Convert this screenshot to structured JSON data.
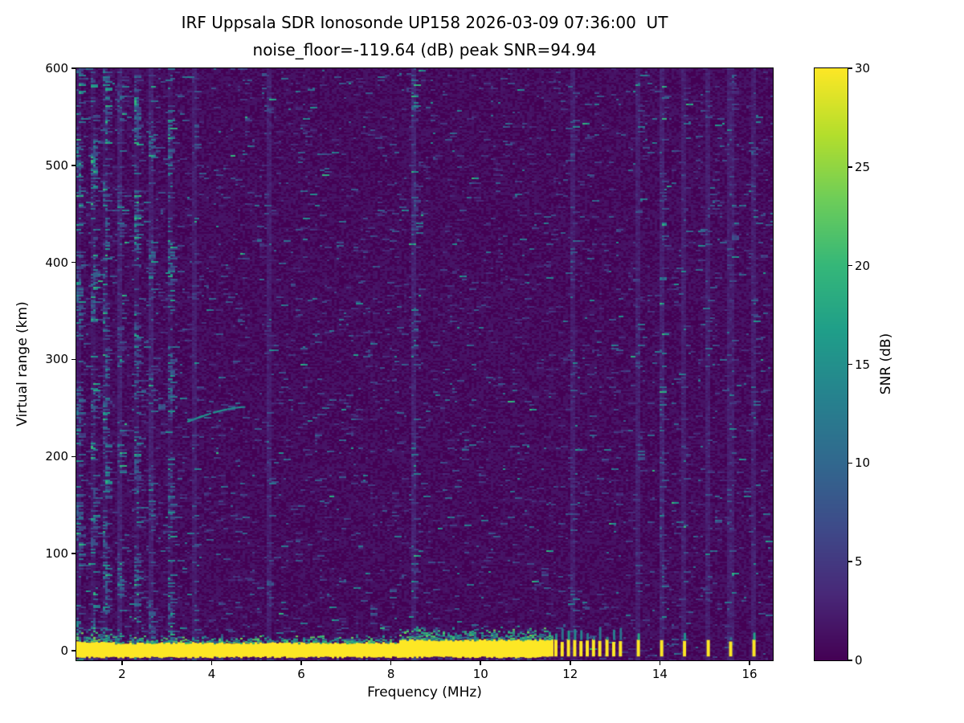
{
  "chart_data": {
    "type": "heatmap",
    "title": "IRF Uppsala SDR Ionosonde UP158 2026-03-09 07:36:00  UT",
    "subtitle": "noise_floor=-119.64 (dB) peak SNR=94.94",
    "noise_floor_db": -119.64,
    "peak_snr_db": 94.94,
    "xlabel": "Frequency (MHz)",
    "ylabel": "Virtual range (km)",
    "xlim": [
      0.98,
      16.52
    ],
    "ylim": [
      -10,
      600
    ],
    "xticks": [
      2,
      4,
      6,
      8,
      10,
      12,
      14,
      16
    ],
    "yticks": [
      0,
      100,
      200,
      300,
      400,
      500,
      600
    ],
    "grid": false,
    "colormap": "viridis",
    "colorbar": {
      "label": "SNR (dB)",
      "min": 0,
      "max": 30,
      "ticks": [
        0,
        5,
        10,
        15,
        20,
        25,
        30
      ],
      "position": "right"
    },
    "features": {
      "noise_floor_speckle_probability": 0.03,
      "ground_echo_band": {
        "f_start": 1.0,
        "f_end": 11.65,
        "km_bottom": -6,
        "km_top": 8,
        "snr": 30,
        "description": "saturated continuous ground/transmit band at 0 km virtual range"
      },
      "pulse_train": {
        "f_values": [
          11.68,
          11.82,
          11.96,
          12.1,
          12.24,
          12.38,
          12.52,
          12.66,
          12.82,
          12.97,
          13.12,
          13.52,
          14.04,
          14.55,
          15.08,
          15.58,
          16.1
        ],
        "km_bottom": -6,
        "km_top": 9,
        "snr": 30,
        "description": "discrete saturated pulses at 0 km above 11.7 MHz"
      },
      "echo_trace": {
        "f_start": 3.45,
        "f_end": 4.72,
        "km_start": 236,
        "km_end": 251,
        "snr": 14,
        "description": "faint ionospheric echo trace near 240-250 km"
      },
      "rfi_columns": [
        {
          "f": 1.05,
          "strength": "strong"
        },
        {
          "f": 1.35,
          "strength": "strong"
        },
        {
          "f": 1.62,
          "strength": "strong"
        },
        {
          "f": 1.95,
          "strength": "medium"
        },
        {
          "f": 2.3,
          "strength": "strong"
        },
        {
          "f": 2.65,
          "strength": "medium"
        },
        {
          "f": 3.08,
          "strength": "strong"
        },
        {
          "f": 3.6,
          "strength": "weak"
        },
        {
          "f": 5.3,
          "strength": "weak"
        },
        {
          "f": 8.5,
          "strength": "medium"
        },
        {
          "f": 12.05,
          "strength": "weak"
        },
        {
          "f": 13.5,
          "strength": "weak"
        },
        {
          "f": 14.04,
          "strength": "medium"
        },
        {
          "f": 14.55,
          "strength": "weak"
        },
        {
          "f": 15.08,
          "strength": "weak"
        },
        {
          "f": 15.58,
          "strength": "weak"
        },
        {
          "f": 16.1,
          "strength": "weak"
        }
      ]
    }
  }
}
